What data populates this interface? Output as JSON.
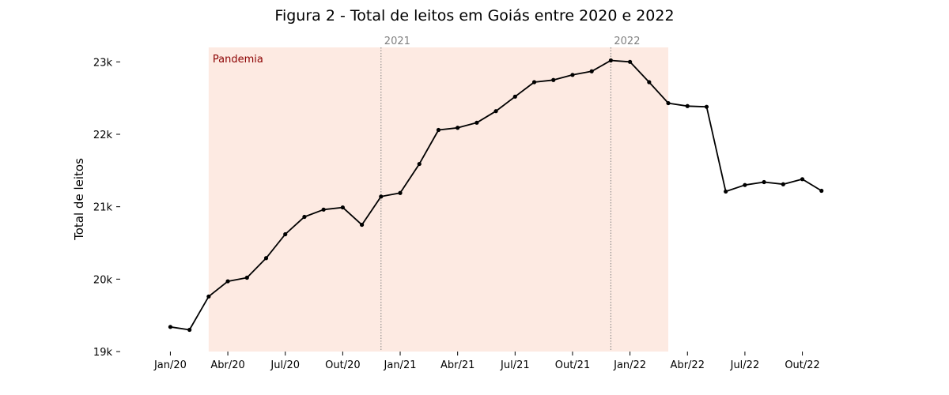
{
  "chart_data": {
    "type": "line",
    "title": "Figura 2 - Total de leitos em Goiás entre 2020 e 2022",
    "xlabel": "",
    "ylabel": "Total de leitos",
    "x": [
      "2020-01",
      "2020-02",
      "2020-03",
      "2020-04",
      "2020-05",
      "2020-06",
      "2020-07",
      "2020-08",
      "2020-09",
      "2020-10",
      "2020-11",
      "2020-12",
      "2021-01",
      "2021-02",
      "2021-03",
      "2021-04",
      "2021-05",
      "2021-06",
      "2021-07",
      "2021-08",
      "2021-09",
      "2021-10",
      "2021-11",
      "2021-12",
      "2022-01",
      "2022-02",
      "2022-03",
      "2022-04",
      "2022-05",
      "2022-06",
      "2022-07",
      "2022-08",
      "2022-09",
      "2022-10",
      "2022-11"
    ],
    "series": [
      {
        "values": [
          19340,
          19300,
          19760,
          19970,
          20020,
          20290,
          20620,
          20860,
          20960,
          20990,
          20750,
          21140,
          21190,
          21590,
          22060,
          22090,
          22160,
          22320,
          22520,
          22720,
          22750,
          22820,
          22870,
          23020,
          23000,
          22720,
          22430,
          22390,
          22380,
          21210,
          21300,
          21340,
          21310,
          21380,
          21220
        ]
      }
    ],
    "xticks": [
      {
        "x": "2020-01",
        "label": "Jan/20"
      },
      {
        "x": "2020-04",
        "label": "Abr/20"
      },
      {
        "x": "2020-07",
        "label": "Jul/20"
      },
      {
        "x": "2020-10",
        "label": "Out/20"
      },
      {
        "x": "2021-01",
        "label": "Jan/21"
      },
      {
        "x": "2021-04",
        "label": "Abr/21"
      },
      {
        "x": "2021-07",
        "label": "Jul/21"
      },
      {
        "x": "2021-10",
        "label": "Out/21"
      },
      {
        "x": "2022-01",
        "label": "Jan/22"
      },
      {
        "x": "2022-04",
        "label": "Abr/22"
      },
      {
        "x": "2022-07",
        "label": "Jul/22"
      },
      {
        "x": "2022-10",
        "label": "Out/22"
      }
    ],
    "yticks": [
      {
        "y": 19000,
        "label": "19k"
      },
      {
        "y": 20000,
        "label": "20k"
      },
      {
        "y": 21000,
        "label": "21k"
      },
      {
        "y": 22000,
        "label": "22k"
      },
      {
        "y": 23000,
        "label": "23k"
      }
    ],
    "ylim": [
      19000,
      23200
    ],
    "xlim": [
      "2019-11",
      "2022-12"
    ],
    "shaded_region": {
      "start": "2020-03",
      "end": "2022-03",
      "label": "Pandemia",
      "color": "#fdeae2",
      "label_color": "#8b0000"
    },
    "year_markers": [
      {
        "x": "2020-12",
        "label": "2021"
      },
      {
        "x": "2021-12",
        "label": "2022"
      }
    ],
    "grid": false,
    "colors": {
      "line": "#000000",
      "marker": "#000000",
      "year_marker": "#808080"
    }
  }
}
